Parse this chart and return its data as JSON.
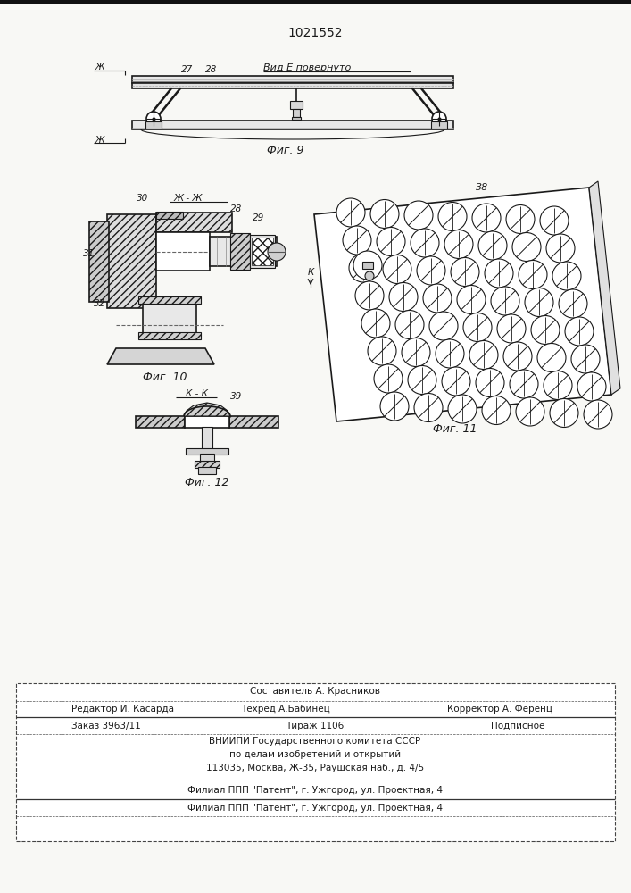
{
  "patent_number": "1021552",
  "background_color": "#f8f8f5",
  "line_color": "#1a1a1a",
  "fig9_label": "Фиг. 9",
  "fig10_label": "Фиг. 10",
  "fig11_label": "Фиг. 11",
  "fig12_label": "Фиг. 12",
  "vid_e_label": "Вид Е повернуто",
  "label_zh_zh": "Ж - Ж",
  "label_k_k": "К - К",
  "footer_line1": "Составитель А. Красников",
  "footer_line2_left": "Редактор И. Касарда",
  "footer_line2_mid": "Техред А.Бабинец",
  "footer_line2_right": "Корректор А. Ференц",
  "footer_line3_left": "Заказ 3963/11",
  "footer_line3_mid": "Тираж 1106",
  "footer_line3_right": "Подписное",
  "footer_line4": "ВНИИПИ Государственного комитета СССР",
  "footer_line5": "по делам изобретений и открытий",
  "footer_line6": "113035, Москва, Ж-35, Раушская наб., д. 4/5",
  "footer_line7": "Филиал ППП \"Патент\", г. Ужгород, ул. Проектная, 4"
}
